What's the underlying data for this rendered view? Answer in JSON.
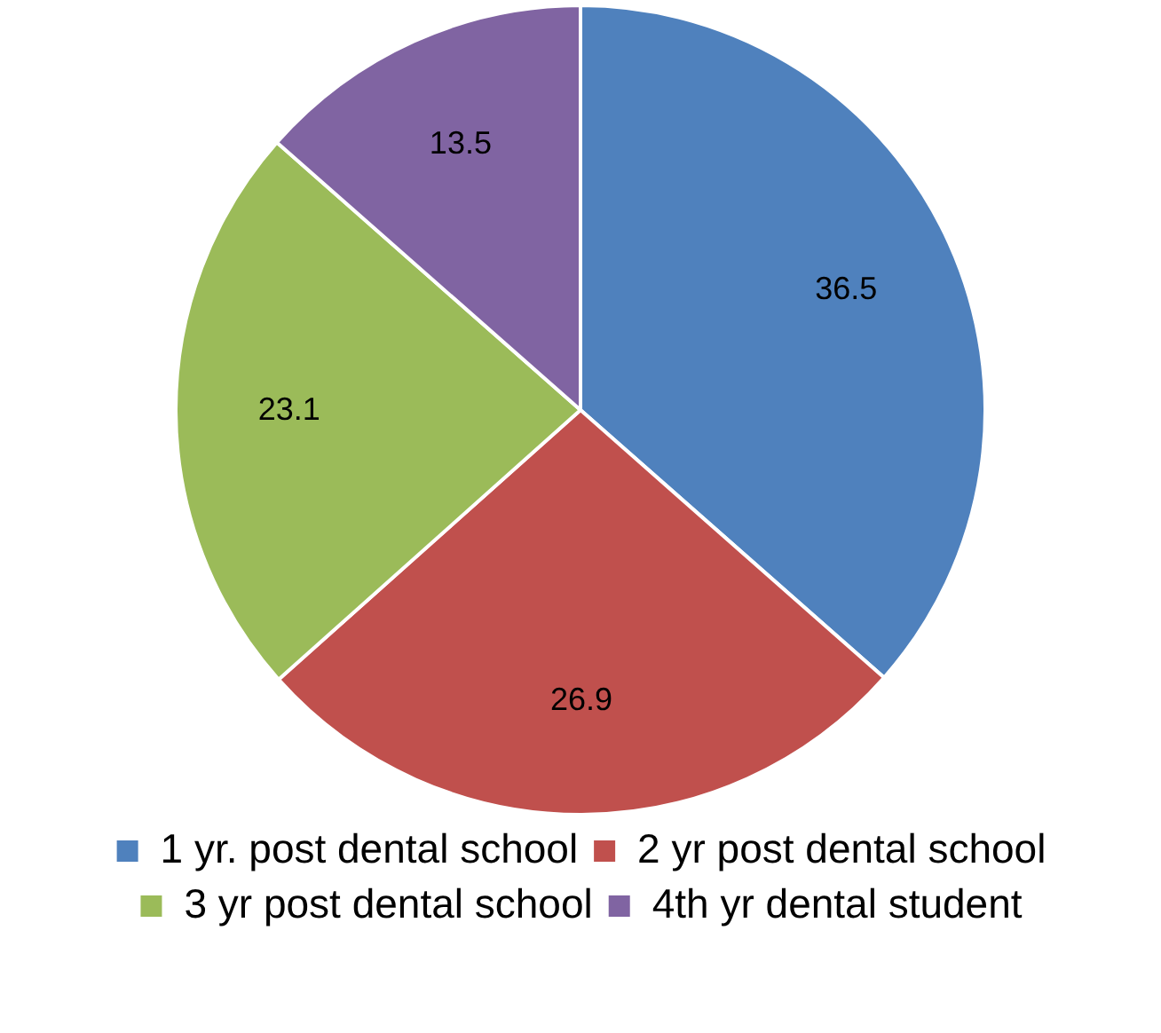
{
  "chart_data": {
    "type": "pie",
    "categories": [
      "1 yr. post dental school",
      "2 yr post dental school",
      "3 yr post dental school",
      "4th yr dental student"
    ],
    "values": [
      36.5,
      26.9,
      23.1,
      13.5
    ],
    "colors": [
      "#4f81bd",
      "#c0504d",
      "#9bbb59",
      "#8064a2"
    ],
    "data_labels": true,
    "legend": "bottom"
  }
}
